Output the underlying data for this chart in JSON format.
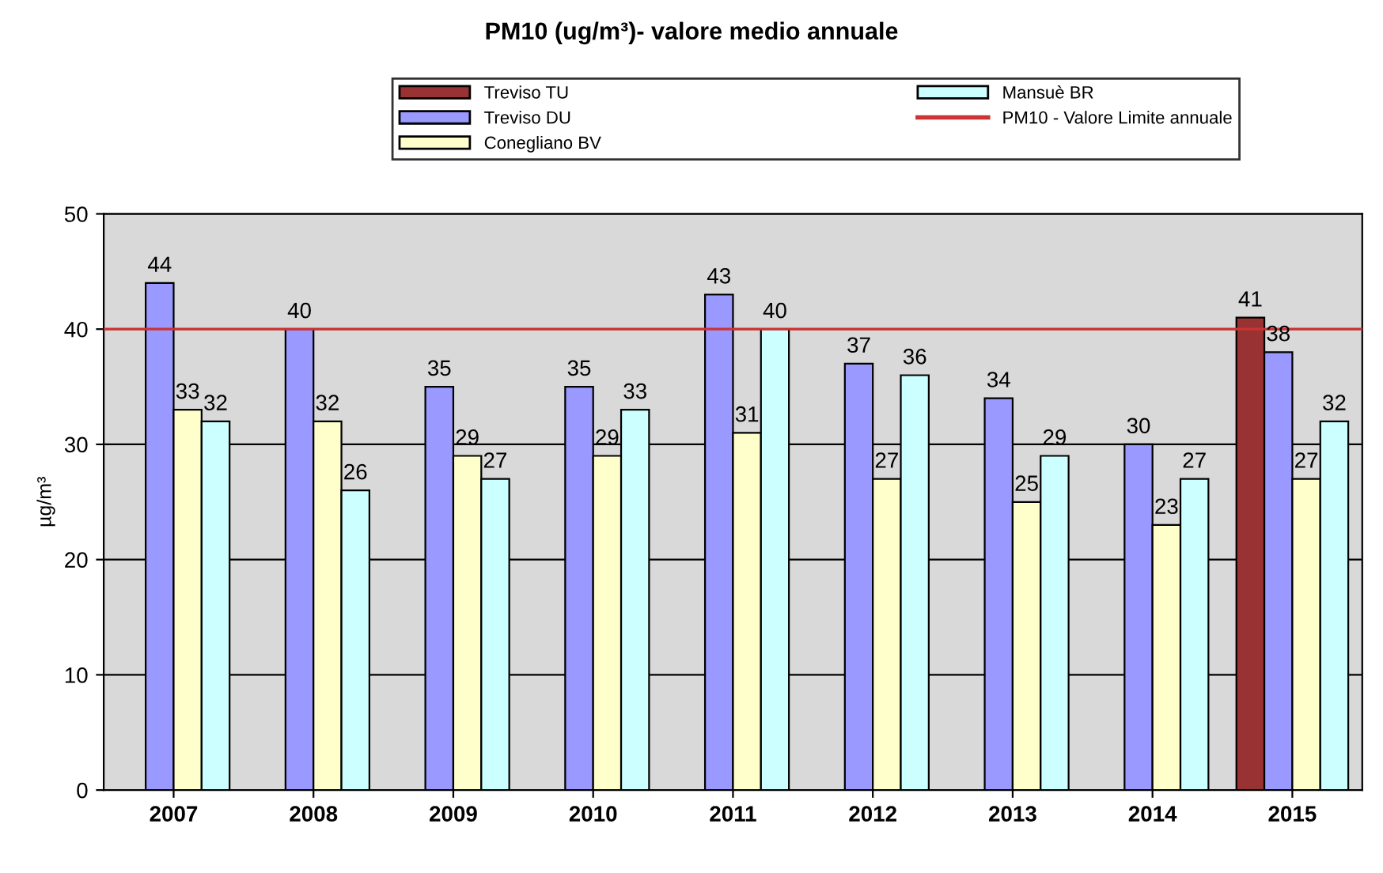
{
  "chart_data": {
    "type": "bar",
    "title": "PM10 (ug/m³)- valore medio annuale",
    "ylabel": "µg/m³",
    "categories": [
      "2007",
      "2008",
      "2009",
      "2010",
      "2011",
      "2012",
      "2013",
      "2014",
      "2015"
    ],
    "series": [
      {
        "name": "Treviso TU",
        "color": "#993333",
        "values": [
          null,
          null,
          null,
          null,
          null,
          null,
          null,
          null,
          41
        ]
      },
      {
        "name": "Treviso DU",
        "color": "#9999ff",
        "values": [
          44,
          40,
          35,
          35,
          43,
          37,
          34,
          30,
          38
        ]
      },
      {
        "name": "Conegliano BV",
        "color": "#ffffcc",
        "values": [
          33,
          32,
          29,
          29,
          31,
          27,
          25,
          23,
          27
        ]
      },
      {
        "name": "Mansuè BR",
        "color": "#ccffff",
        "values": [
          32,
          26,
          27,
          33,
          40,
          36,
          29,
          27,
          32
        ]
      }
    ],
    "ref_lines": [
      {
        "axis": "y",
        "value": 40,
        "label": "PM10 - Valore Limite annuale",
        "color": "#cc3333"
      }
    ],
    "ylim": [
      0,
      50
    ],
    "yticks": [
      0,
      10,
      20,
      30,
      40,
      50
    ],
    "grid": "y",
    "legend": "top",
    "data_labels": true
  }
}
